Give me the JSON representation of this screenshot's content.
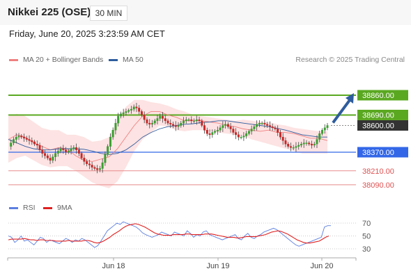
{
  "header": {
    "title": "Nikkei 225 (OSE)",
    "timeframe": "30 MIN"
  },
  "date_line": "Friday, June 20, 2025 3:23:59 AM CET",
  "legend": [
    {
      "label": "MA 20 + Bollinger Bands",
      "color": "#f08080"
    },
    {
      "label": "MA 50",
      "color": "#2e5c9e"
    }
  ],
  "credit": "Research © 2025 Trading Central",
  "rsi_legend": [
    {
      "label": "RSI",
      "color": "#5b7ee0"
    },
    {
      "label": "9MA",
      "color": "#e02020"
    }
  ],
  "colors": {
    "resistance": "#5aa820",
    "pivot": "#3367e8",
    "support": "#e05050",
    "last_price": "#333333",
    "up_candle": "#3aa030",
    "down_candle": "#c82828"
  },
  "chart_data": [
    {
      "type": "candlestick",
      "title": "",
      "x_tick_labels": [
        "Jun 18",
        "Jun 19",
        "Jun 20"
      ],
      "ylim": [
        38040,
        38940
      ],
      "levels": [
        {
          "value": 38860,
          "label": "38860.00",
          "kind": "resistance"
        },
        {
          "value": 38690,
          "label": "38690.00",
          "kind": "resistance"
        },
        {
          "value": 38600,
          "label": "38600.00",
          "kind": "last_price"
        },
        {
          "value": 38370,
          "label": "38370.00",
          "kind": "pivot"
        },
        {
          "value": 38210,
          "label": "38210.00",
          "kind": "support"
        },
        {
          "value": 38090,
          "label": "38090.00",
          "kind": "support"
        }
      ],
      "close_series": [
        38420,
        38450,
        38480,
        38500,
        38510,
        38500,
        38490,
        38480,
        38470,
        38460,
        38440,
        38430,
        38390,
        38360,
        38340,
        38320,
        38300,
        38330,
        38360,
        38380,
        38400,
        38390,
        38370,
        38380,
        38400,
        38410,
        38390,
        38360,
        38320,
        38290,
        38270,
        38260,
        38240,
        38230,
        38220,
        38230,
        38280,
        38350,
        38420,
        38500,
        38560,
        38620,
        38680,
        38700,
        38710,
        38720,
        38730,
        38740,
        38760,
        38750,
        38720,
        38690,
        38650,
        38620,
        38610,
        38620,
        38640,
        38660,
        38680,
        38660,
        38640,
        38620,
        38610,
        38600,
        38590,
        38600,
        38620,
        38640,
        38650,
        38650,
        38640,
        38640,
        38650,
        38640,
        38600,
        38560,
        38530,
        38520,
        38540,
        38550,
        38560,
        38580,
        38600,
        38610,
        38590,
        38570,
        38540,
        38520,
        38500,
        38500,
        38510,
        38530,
        38550,
        38570,
        38590,
        38610,
        38620,
        38620,
        38610,
        38600,
        38590,
        38580,
        38570,
        38540,
        38500,
        38470,
        38440,
        38420,
        38410,
        38410,
        38420,
        38430,
        38440,
        38450,
        38450,
        38440,
        38430,
        38440,
        38480,
        38530,
        38560,
        38580,
        38600
      ],
      "ma50": [
        38480,
        38450,
        38420,
        38400,
        38390,
        38390,
        38400,
        38400,
        38400,
        38395,
        38380,
        38360,
        38350,
        38360,
        38390,
        38440,
        38500,
        38540,
        38570,
        38590,
        38600,
        38610,
        38615,
        38625,
        38630,
        38640,
        38640,
        38630,
        38620,
        38610,
        38600,
        38590,
        38575,
        38560,
        38540,
        38520,
        38510,
        38500,
        38500
      ],
      "ma20": [
        38480,
        38520,
        38500,
        38450,
        38420,
        38390,
        38410,
        38400,
        38340,
        38300,
        38290,
        38310,
        38330,
        38400,
        38500,
        38600,
        38680,
        38720,
        38720,
        38690,
        38670,
        38640,
        38640,
        38640,
        38630,
        38620,
        38600,
        38590,
        38570,
        38560,
        38550,
        38560,
        38540,
        38540,
        38530,
        38510,
        38490,
        38490,
        38470
      ],
      "bb_upper": [
        38680,
        38700,
        38680,
        38630,
        38580,
        38560,
        38560,
        38520,
        38520,
        38500,
        38460,
        38470,
        38500,
        38640,
        38760,
        38820,
        38820,
        38800,
        38790,
        38770,
        38740,
        38720,
        38690,
        38680,
        38670,
        38660,
        38650,
        38640,
        38650,
        38640,
        38630,
        38630,
        38610,
        38600,
        38580,
        38570,
        38560,
        38550,
        38550
      ],
      "bb_lower": [
        38280,
        38320,
        38340,
        38300,
        38260,
        38240,
        38250,
        38250,
        38210,
        38160,
        38110,
        38080,
        38060,
        38120,
        38240,
        38380,
        38480,
        38540,
        38600,
        38590,
        38560,
        38550,
        38560,
        38560,
        38550,
        38540,
        38530,
        38520,
        38510,
        38480,
        38460,
        38440,
        38420,
        38400,
        38380,
        38360,
        38360,
        38360,
        38360
      ],
      "forecast_target": 38860
    },
    {
      "type": "line",
      "title": "RSI",
      "ylim": [
        20,
        80
      ],
      "y_ticks": [
        30,
        50,
        70
      ],
      "series": [
        {
          "name": "RSI",
          "values": [
            50,
            48,
            40,
            44,
            50,
            42,
            44,
            40,
            36,
            42,
            48,
            46,
            40,
            44,
            42,
            40,
            38,
            42,
            46,
            44,
            40,
            44,
            42,
            46,
            44,
            40,
            36,
            32,
            35,
            42,
            50,
            58,
            62,
            66,
            70,
            68,
            72,
            70,
            68,
            66,
            64,
            60,
            55,
            52,
            50,
            48,
            50,
            52,
            56,
            54,
            52,
            50,
            56,
            54,
            52,
            50,
            58,
            54,
            48,
            52,
            50,
            56,
            58,
            52,
            50,
            48,
            46,
            44,
            46,
            48,
            50,
            52,
            46,
            44,
            50,
            54,
            48,
            46,
            50,
            52,
            56,
            58,
            60,
            62,
            60,
            56,
            52,
            48,
            44,
            40,
            36,
            34,
            36,
            38,
            40,
            42,
            44,
            46,
            48,
            64,
            66,
            66
          ]
        },
        {
          "name": "9MA",
          "values": [
            44,
            45,
            45,
            45,
            45,
            46,
            45,
            44,
            44,
            43,
            44,
            44,
            43,
            43,
            43,
            42,
            42,
            42,
            42,
            43,
            42,
            42,
            42,
            42,
            43,
            43,
            42,
            40,
            39,
            40,
            42,
            45,
            48,
            52,
            55,
            58,
            62,
            65,
            67,
            68,
            69,
            68,
            66,
            64,
            61,
            58,
            55,
            53,
            52,
            51,
            51,
            51,
            52,
            52,
            52,
            52,
            53,
            53,
            52,
            52,
            52,
            52,
            53,
            53,
            53,
            52,
            51,
            50,
            49,
            48,
            48,
            48,
            47,
            47,
            48,
            49,
            49,
            49,
            49,
            50,
            51,
            52,
            54,
            56,
            57,
            58,
            57,
            55,
            53,
            50,
            47,
            44,
            42,
            40,
            39,
            39,
            40,
            41,
            42,
            45,
            48,
            50
          ]
        }
      ]
    }
  ]
}
